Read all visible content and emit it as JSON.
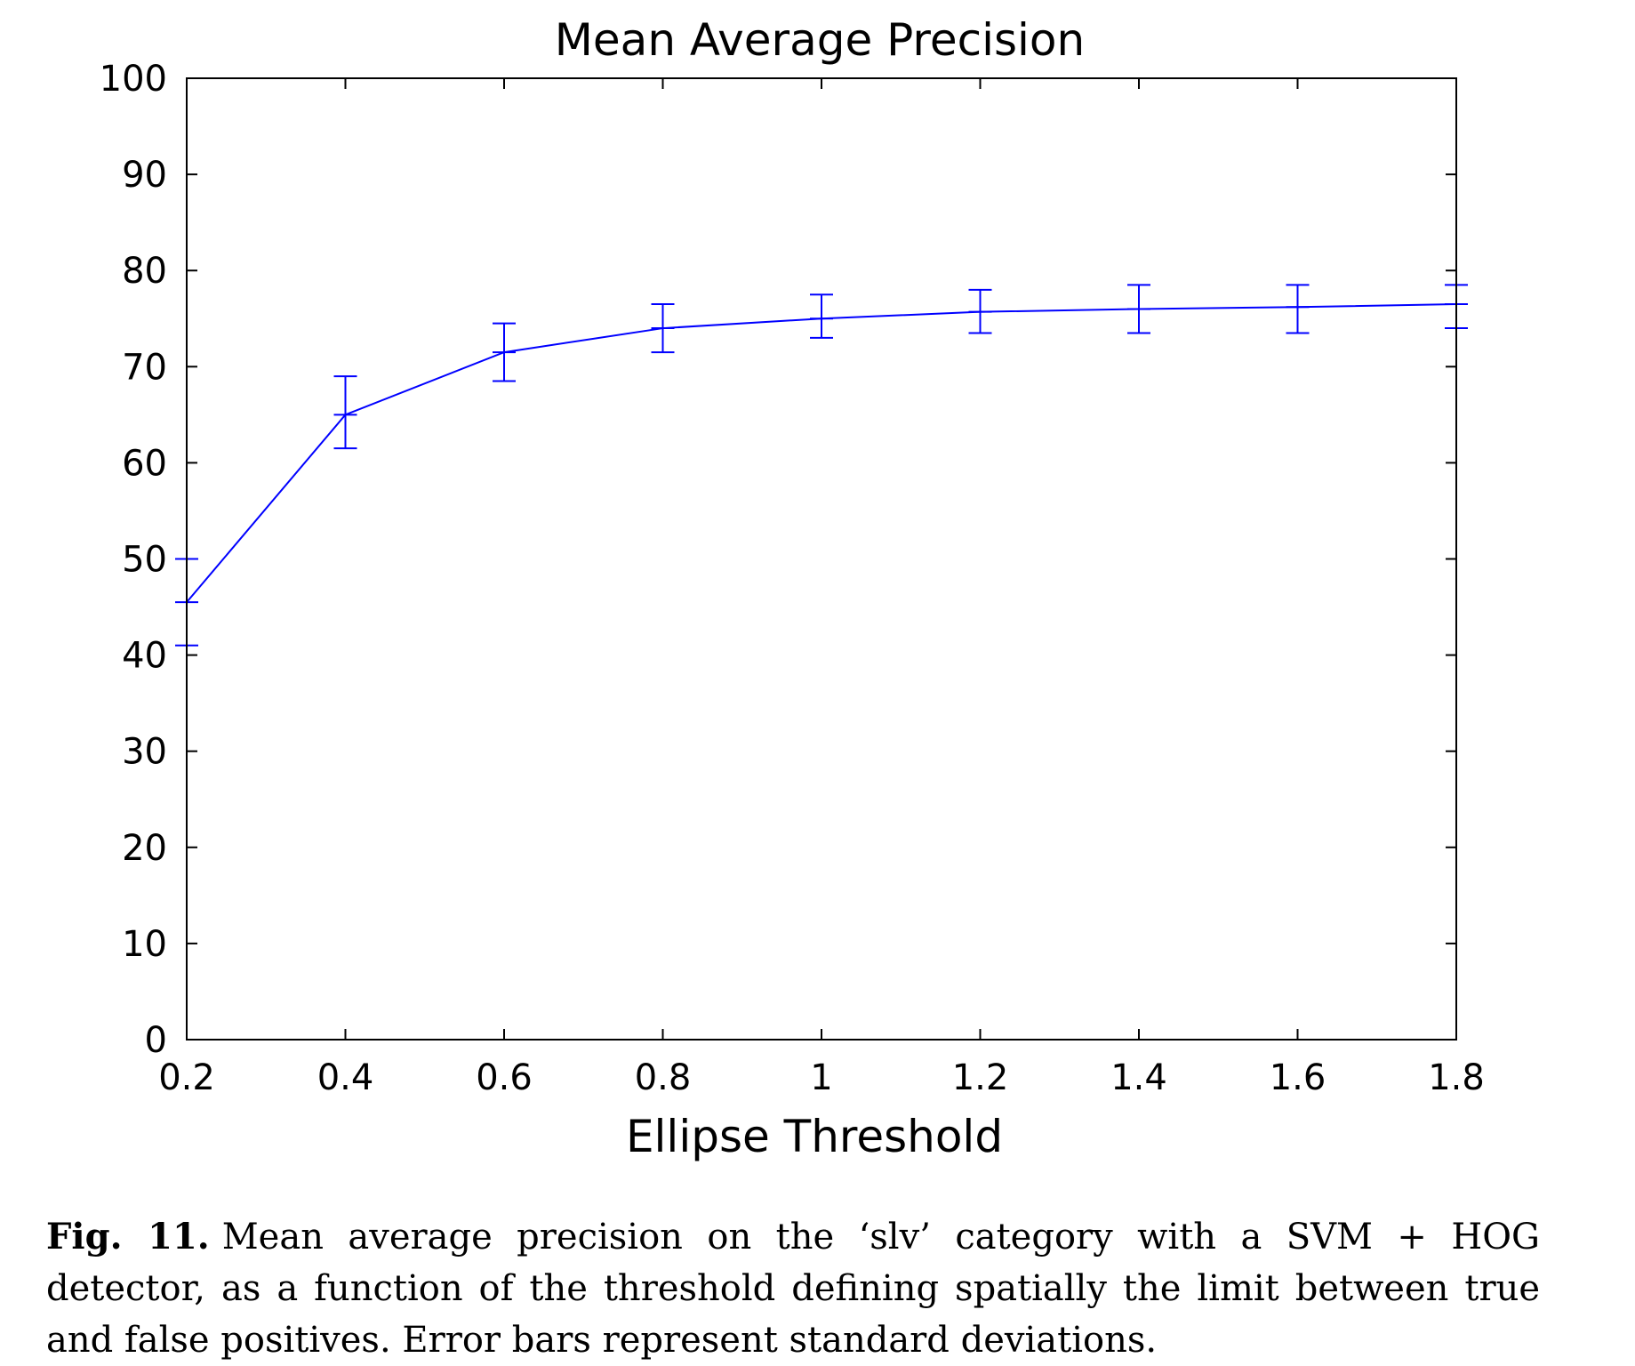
{
  "chart_data": {
    "type": "line",
    "title": "Mean Average Precision",
    "xlabel": "Ellipse Threshold",
    "ylabel": "",
    "xlim": [
      0.2,
      1.8
    ],
    "ylim": [
      0,
      100
    ],
    "xticks": [
      "0.2",
      "0.4",
      "0.6",
      "0.8",
      "1",
      "1.2",
      "1.4",
      "1.6",
      "1.8"
    ],
    "yticks": [
      "0",
      "10",
      "20",
      "30",
      "40",
      "50",
      "60",
      "70",
      "80",
      "90",
      "100"
    ],
    "grid": false,
    "legend": "none",
    "series": [
      {
        "color": "#0000ff",
        "x": [
          0.2,
          0.4,
          0.6,
          0.8,
          1.0,
          1.2,
          1.4,
          1.6,
          1.8
        ],
        "y": [
          45.5,
          65.0,
          71.5,
          74.0,
          75.0,
          75.7,
          76.0,
          76.2,
          76.5
        ],
        "error_lower": [
          41.0,
          61.5,
          68.5,
          71.5,
          73.0,
          73.5,
          73.5,
          73.5,
          74.0
        ],
        "error_upper": [
          50.0,
          69.0,
          74.5,
          76.5,
          77.5,
          78.0,
          78.5,
          78.5,
          78.5
        ]
      }
    ]
  },
  "caption": {
    "label": "Fig. 11.",
    "text": "Mean average precision on the ‘slv’ category with a SVM + HOG detector, as a function of the threshold defining spatially the limit between true and false positives. Error bars represent standard deviations."
  }
}
